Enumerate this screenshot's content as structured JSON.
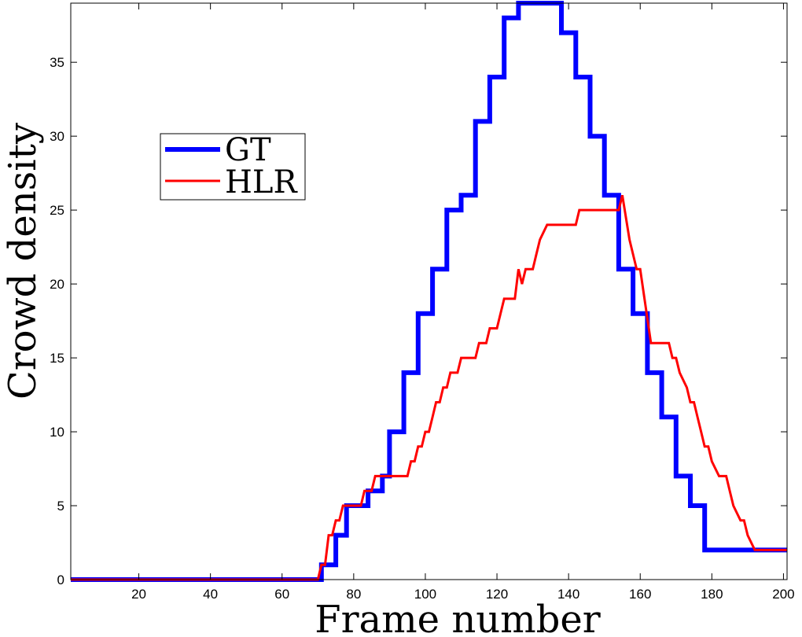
{
  "chart_data": {
    "type": "line",
    "title": "",
    "xlabel": "Frame number",
    "ylabel": "Crowd density",
    "xlim": [
      1,
      201
    ],
    "ylim": [
      0,
      39
    ],
    "xticks": [
      20,
      40,
      60,
      80,
      100,
      120,
      140,
      160,
      180,
      200
    ],
    "yticks": [
      0,
      5,
      10,
      15,
      20,
      25,
      30,
      35
    ],
    "grid": false,
    "legend_position": "upper-left",
    "series": [
      {
        "name": "GT",
        "color": "#0000ff",
        "points": [
          [
            1,
            0
          ],
          [
            71,
            0
          ],
          [
            71,
            1
          ],
          [
            75,
            1
          ],
          [
            75,
            3
          ],
          [
            78,
            3
          ],
          [
            78,
            5
          ],
          [
            84,
            5
          ],
          [
            84,
            6
          ],
          [
            88,
            6
          ],
          [
            88,
            7
          ],
          [
            90,
            7
          ],
          [
            90,
            10
          ],
          [
            94,
            10
          ],
          [
            94,
            14
          ],
          [
            98,
            14
          ],
          [
            98,
            18
          ],
          [
            102,
            18
          ],
          [
            102,
            21
          ],
          [
            106,
            21
          ],
          [
            106,
            25
          ],
          [
            110,
            25
          ],
          [
            110,
            26
          ],
          [
            114,
            26
          ],
          [
            114,
            31
          ],
          [
            118,
            31
          ],
          [
            118,
            34
          ],
          [
            122,
            34
          ],
          [
            122,
            38
          ],
          [
            126,
            38
          ],
          [
            126,
            39
          ],
          [
            138,
            39
          ],
          [
            138,
            37
          ],
          [
            142,
            37
          ],
          [
            142,
            34
          ],
          [
            146,
            34
          ],
          [
            146,
            30
          ],
          [
            150,
            30
          ],
          [
            150,
            26
          ],
          [
            154,
            26
          ],
          [
            154,
            21
          ],
          [
            158,
            21
          ],
          [
            158,
            18
          ],
          [
            162,
            18
          ],
          [
            162,
            14
          ],
          [
            166,
            14
          ],
          [
            166,
            11
          ],
          [
            170,
            11
          ],
          [
            170,
            7
          ],
          [
            174,
            7
          ],
          [
            174,
            5
          ],
          [
            178,
            5
          ],
          [
            178,
            2
          ],
          [
            201,
            2
          ]
        ]
      },
      {
        "name": "HLR",
        "color": "#ff0000",
        "points": [
          [
            1,
            0
          ],
          [
            70,
            0
          ],
          [
            71,
            1
          ],
          [
            72,
            1
          ],
          [
            73,
            3
          ],
          [
            74,
            3
          ],
          [
            75,
            4
          ],
          [
            76,
            4
          ],
          [
            77,
            5
          ],
          [
            82,
            5
          ],
          [
            83,
            6
          ],
          [
            85,
            6
          ],
          [
            86,
            7
          ],
          [
            95,
            7
          ],
          [
            96,
            8
          ],
          [
            97,
            8
          ],
          [
            98,
            9
          ],
          [
            99,
            9
          ],
          [
            100,
            10
          ],
          [
            101,
            10
          ],
          [
            102,
            11
          ],
          [
            103,
            12
          ],
          [
            104,
            12
          ],
          [
            105,
            13
          ],
          [
            106,
            13
          ],
          [
            107,
            14
          ],
          [
            109,
            14
          ],
          [
            110,
            15
          ],
          [
            114,
            15
          ],
          [
            115,
            16
          ],
          [
            117,
            16
          ],
          [
            118,
            17
          ],
          [
            120,
            17
          ],
          [
            121,
            18
          ],
          [
            122,
            19
          ],
          [
            125,
            19
          ],
          [
            126,
            21
          ],
          [
            127,
            20
          ],
          [
            128,
            21
          ],
          [
            130,
            21
          ],
          [
            131,
            22
          ],
          [
            132,
            23
          ],
          [
            134,
            24
          ],
          [
            142,
            24
          ],
          [
            143,
            25
          ],
          [
            154,
            25
          ],
          [
            155,
            26
          ],
          [
            157,
            23
          ],
          [
            159,
            21
          ],
          [
            160,
            21
          ],
          [
            163,
            16
          ],
          [
            168,
            16
          ],
          [
            169,
            15
          ],
          [
            170,
            15
          ],
          [
            171,
            14
          ],
          [
            173,
            13
          ],
          [
            174,
            12
          ],
          [
            175,
            12
          ],
          [
            176,
            11
          ],
          [
            177,
            10
          ],
          [
            178,
            9
          ],
          [
            179,
            9
          ],
          [
            180,
            8
          ],
          [
            182,
            7
          ],
          [
            184,
            7
          ],
          [
            185,
            6
          ],
          [
            186,
            5
          ],
          [
            188,
            4
          ],
          [
            189,
            4
          ],
          [
            190,
            3
          ],
          [
            192,
            2
          ],
          [
            201,
            2
          ]
        ]
      }
    ]
  }
}
